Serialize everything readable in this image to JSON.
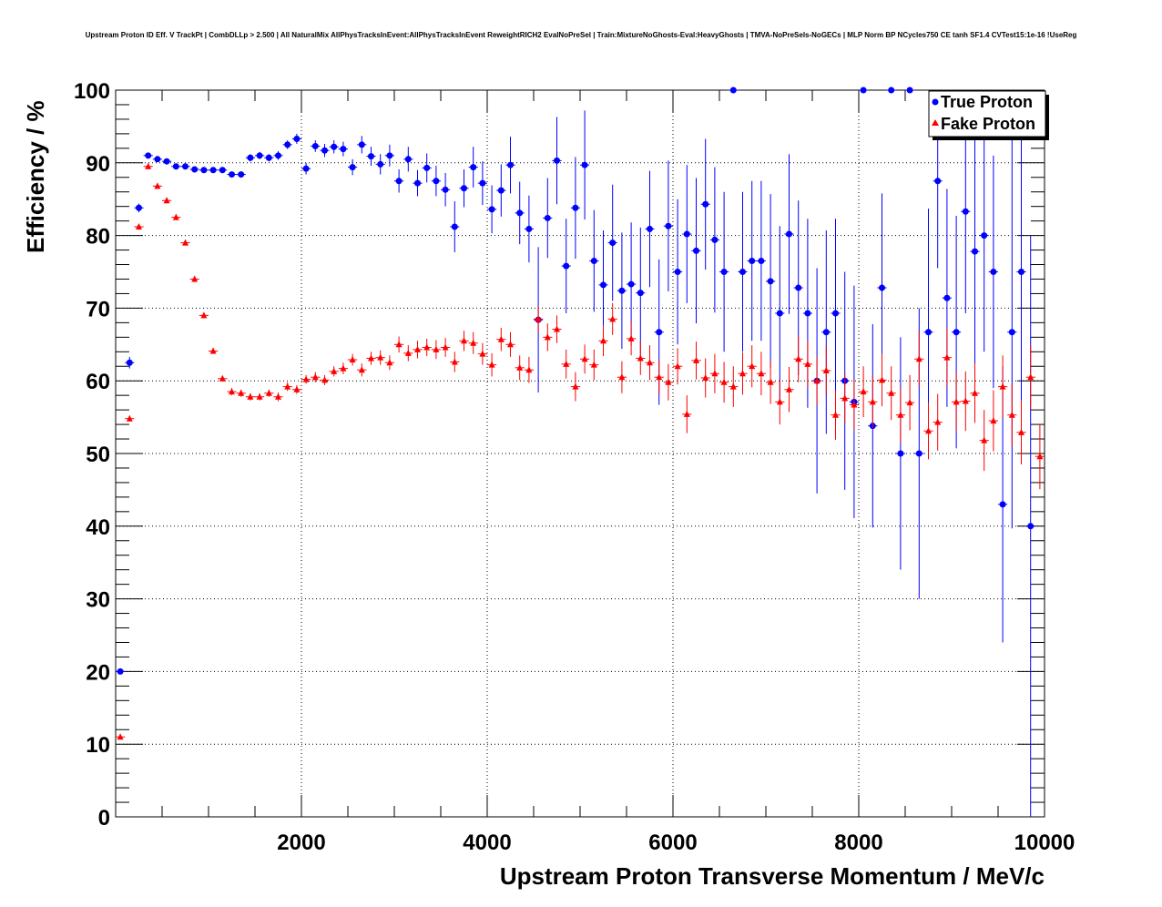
{
  "chart_data": {
    "type": "scatter",
    "title": "Upstream Proton ID Eff. V TrackPt | CombDLLp > 2.500 | All NaturalMix AllPhysTracksInEvent:AllPhysTracksInEvent ReweightRICH2 EvalNoPreSel | Train:MixtureNoGhosts-Eval:HeavyGhosts | TMVA-NoPreSels-NoGECs | MLP Norm BP NCycles750 CE tanh SF1.4 CVTest15:1e-16 !UseReg",
    "xlabel": "Upstream Proton Transverse Momentum / MeV/c",
    "ylabel": "Efficiency / %",
    "xlim": [
      0,
      10000
    ],
    "ylim": [
      0,
      100
    ],
    "xticks": [
      2000,
      4000,
      6000,
      8000,
      10000
    ],
    "yticks": [
      0,
      10,
      20,
      30,
      40,
      50,
      60,
      70,
      80,
      90,
      100
    ],
    "grid": true,
    "legend_position": "top-right",
    "series": [
      {
        "name": "True Proton",
        "color": "#0000ff",
        "marker": "circle",
        "points": [
          [
            50,
            20.0,
            0
          ],
          [
            150,
            62.5,
            0.8
          ],
          [
            250,
            83.8,
            0.6
          ],
          [
            350,
            91.0,
            0.4
          ],
          [
            450,
            90.5,
            0.3
          ],
          [
            550,
            90.2,
            0.3
          ],
          [
            650,
            89.5,
            0.3
          ],
          [
            750,
            89.5,
            0.3
          ],
          [
            850,
            89.1,
            0.3
          ],
          [
            950,
            89.0,
            0.3
          ],
          [
            1050,
            89.0,
            0.3
          ],
          [
            1150,
            89.0,
            0.3
          ],
          [
            1250,
            88.4,
            0.4
          ],
          [
            1350,
            88.4,
            0.4
          ],
          [
            1450,
            90.7,
            0.5
          ],
          [
            1550,
            91.0,
            0.5
          ],
          [
            1650,
            90.7,
            0.5
          ],
          [
            1750,
            91.0,
            0.6
          ],
          [
            1850,
            92.5,
            0.6
          ],
          [
            1950,
            93.3,
            0.7
          ],
          [
            2050,
            89.2,
            0.8
          ],
          [
            2150,
            92.3,
            0.8
          ],
          [
            2250,
            91.7,
            0.9
          ],
          [
            2350,
            92.2,
            0.9
          ],
          [
            2450,
            91.9,
            1.0
          ],
          [
            2550,
            89.4,
            1.1
          ],
          [
            2650,
            92.5,
            1.2
          ],
          [
            2750,
            90.9,
            1.3
          ],
          [
            2850,
            89.8,
            1.4
          ],
          [
            2950,
            91.0,
            1.5
          ],
          [
            3050,
            87.5,
            1.6
          ],
          [
            3150,
            90.5,
            1.7
          ],
          [
            3250,
            87.2,
            1.8
          ],
          [
            3350,
            89.3,
            2.0
          ],
          [
            3450,
            87.5,
            2.1
          ],
          [
            3550,
            86.3,
            2.3
          ],
          [
            3650,
            81.2,
            3.5
          ],
          [
            3750,
            86.5,
            2.6
          ],
          [
            3850,
            89.4,
            2.8
          ],
          [
            3950,
            87.2,
            3.0
          ],
          [
            4050,
            83.6,
            3.3
          ],
          [
            4150,
            86.2,
            3.6
          ],
          [
            4250,
            89.7,
            3.9
          ],
          [
            4350,
            83.1,
            4.3
          ],
          [
            4450,
            80.9,
            4.6
          ],
          [
            4550,
            68.4,
            10.0
          ],
          [
            4650,
            82.4,
            5.5
          ],
          [
            4750,
            90.3,
            6.0
          ],
          [
            4850,
            75.8,
            6.5
          ],
          [
            4950,
            83.8,
            7.0
          ],
          [
            5050,
            89.7,
            7.5
          ],
          [
            5150,
            76.5,
            7.0
          ],
          [
            5250,
            73.2,
            7.5
          ],
          [
            5350,
            79.0,
            8.0
          ],
          [
            5450,
            72.4,
            8.0
          ],
          [
            5550,
            73.3,
            8.5
          ],
          [
            5650,
            72.1,
            9.0
          ],
          [
            5750,
            80.9,
            8.0
          ],
          [
            5850,
            66.7,
            10.0
          ],
          [
            5950,
            81.3,
            9.0
          ],
          [
            6050,
            75.0,
            10.0
          ],
          [
            6150,
            80.2,
            9.5
          ],
          [
            6250,
            77.9,
            10.0
          ],
          [
            6350,
            84.3,
            9.0
          ],
          [
            6450,
            79.4,
            10.0
          ],
          [
            6550,
            75.0,
            11.0
          ],
          [
            6650,
            100.0,
            0
          ],
          [
            6750,
            75.0,
            11.0
          ],
          [
            6850,
            76.5,
            11.0
          ],
          [
            6950,
            76.5,
            11.0
          ],
          [
            7050,
            73.7,
            12.0
          ],
          [
            7150,
            69.3,
            12.0
          ],
          [
            7250,
            80.2,
            11.0
          ],
          [
            7350,
            72.8,
            12.0
          ],
          [
            7450,
            69.3,
            13.0
          ],
          [
            7550,
            60.0,
            15.5
          ],
          [
            7650,
            66.7,
            14.0
          ],
          [
            7750,
            69.3,
            13.0
          ],
          [
            7850,
            60.0,
            15.0
          ],
          [
            7950,
            57.1,
            16.0
          ],
          [
            8050,
            100.0,
            0
          ],
          [
            8150,
            53.8,
            14.0
          ],
          [
            8250,
            72.8,
            13.0
          ],
          [
            8350,
            100.0,
            0
          ],
          [
            8450,
            50.0,
            16.0
          ],
          [
            8550,
            100.0,
            0
          ],
          [
            8650,
            50.0,
            20.0
          ],
          [
            8750,
            66.7,
            17.0
          ],
          [
            8850,
            87.5,
            12.0
          ],
          [
            8950,
            71.4,
            15.0
          ],
          [
            9050,
            66.7,
            16.0
          ],
          [
            9150,
            83.3,
            14.0
          ],
          [
            9250,
            77.8,
            16.0
          ],
          [
            9350,
            80.0,
            16.0
          ],
          [
            9450,
            75.0,
            16.0
          ],
          [
            9550,
            43.0,
            19.0
          ],
          [
            9650,
            66.7,
            27.0
          ],
          [
            9750,
            75.0,
            26.0
          ],
          [
            9850,
            40.0,
            40.0
          ]
        ]
      },
      {
        "name": "Fake Proton",
        "color": "#ff0000",
        "marker": "triangle",
        "points": [
          [
            50,
            11.0,
            0.3
          ],
          [
            150,
            54.8,
            0.4
          ],
          [
            250,
            81.2,
            0.4
          ],
          [
            350,
            89.5,
            0.4
          ],
          [
            450,
            86.8,
            0.4
          ],
          [
            550,
            84.8,
            0.4
          ],
          [
            650,
            82.5,
            0.4
          ],
          [
            750,
            79.0,
            0.4
          ],
          [
            850,
            74.0,
            0.4
          ],
          [
            950,
            69.0,
            0.4
          ],
          [
            1050,
            64.1,
            0.4
          ],
          [
            1150,
            60.3,
            0.4
          ],
          [
            1250,
            58.5,
            0.5
          ],
          [
            1350,
            58.3,
            0.5
          ],
          [
            1450,
            57.8,
            0.5
          ],
          [
            1550,
            57.8,
            0.5
          ],
          [
            1650,
            58.3,
            0.5
          ],
          [
            1750,
            57.8,
            0.6
          ],
          [
            1850,
            59.2,
            0.6
          ],
          [
            1950,
            58.8,
            0.6
          ],
          [
            2050,
            60.2,
            0.6
          ],
          [
            2150,
            60.5,
            0.7
          ],
          [
            2250,
            60.1,
            0.7
          ],
          [
            2350,
            61.3,
            0.7
          ],
          [
            2450,
            61.7,
            0.8
          ],
          [
            2550,
            62.9,
            0.8
          ],
          [
            2650,
            61.5,
            0.9
          ],
          [
            2750,
            63.1,
            0.9
          ],
          [
            2850,
            63.2,
            1.0
          ],
          [
            2950,
            62.5,
            1.0
          ],
          [
            3050,
            65.0,
            1.1
          ],
          [
            3150,
            63.8,
            1.1
          ],
          [
            3250,
            64.3,
            1.2
          ],
          [
            3350,
            64.6,
            1.2
          ],
          [
            3450,
            64.3,
            1.3
          ],
          [
            3550,
            64.6,
            1.3
          ],
          [
            3650,
            62.6,
            1.4
          ],
          [
            3750,
            65.5,
            1.4
          ],
          [
            3850,
            65.2,
            1.5
          ],
          [
            3950,
            63.7,
            1.5
          ],
          [
            4050,
            62.2,
            1.6
          ],
          [
            4150,
            65.7,
            1.6
          ],
          [
            4250,
            65.0,
            1.7
          ],
          [
            4350,
            61.8,
            1.7
          ],
          [
            4450,
            61.5,
            1.8
          ],
          [
            4550,
            68.5,
            1.8
          ],
          [
            4650,
            66.0,
            1.9
          ],
          [
            4750,
            67.1,
            1.9
          ],
          [
            4850,
            62.3,
            2.0
          ],
          [
            4950,
            59.2,
            2.0
          ],
          [
            5050,
            63.0,
            2.0
          ],
          [
            5150,
            62.2,
            2.1
          ],
          [
            5250,
            65.5,
            2.1
          ],
          [
            5350,
            68.5,
            2.2
          ],
          [
            5450,
            60.5,
            2.2
          ],
          [
            5550,
            65.8,
            2.3
          ],
          [
            5650,
            63.1,
            2.3
          ],
          [
            5750,
            62.5,
            2.4
          ],
          [
            5850,
            60.5,
            2.4
          ],
          [
            5950,
            59.8,
            2.5
          ],
          [
            6050,
            62.0,
            2.5
          ],
          [
            6150,
            55.4,
            2.6
          ],
          [
            6250,
            62.8,
            2.6
          ],
          [
            6350,
            60.4,
            2.7
          ],
          [
            6450,
            61.0,
            2.7
          ],
          [
            6550,
            59.8,
            2.8
          ],
          [
            6650,
            59.2,
            2.8
          ],
          [
            6750,
            61.0,
            2.9
          ],
          [
            6850,
            62.0,
            2.9
          ],
          [
            6950,
            61.0,
            3.0
          ],
          [
            7050,
            59.8,
            3.0
          ],
          [
            7150,
            57.1,
            3.1
          ],
          [
            7250,
            58.8,
            3.1
          ],
          [
            7350,
            63.0,
            3.2
          ],
          [
            7450,
            62.3,
            3.2
          ],
          [
            7550,
            60.0,
            3.3
          ],
          [
            7650,
            61.4,
            3.3
          ],
          [
            7750,
            55.3,
            3.4
          ],
          [
            7850,
            57.6,
            3.4
          ],
          [
            7950,
            56.7,
            3.5
          ],
          [
            8050,
            58.5,
            3.5
          ],
          [
            8150,
            57.1,
            3.6
          ],
          [
            8250,
            60.1,
            3.6
          ],
          [
            8350,
            58.3,
            3.7
          ],
          [
            8450,
            55.3,
            3.7
          ],
          [
            8550,
            57.0,
            3.8
          ],
          [
            8650,
            63.0,
            3.8
          ],
          [
            8750,
            53.1,
            3.9
          ],
          [
            8850,
            54.3,
            3.9
          ],
          [
            8950,
            63.2,
            4.0
          ],
          [
            9050,
            57.1,
            4.0
          ],
          [
            9150,
            57.2,
            4.1
          ],
          [
            9250,
            58.3,
            4.1
          ],
          [
            9350,
            51.8,
            4.2
          ],
          [
            9450,
            54.5,
            4.2
          ],
          [
            9550,
            59.2,
            4.3
          ],
          [
            9650,
            55.3,
            4.3
          ],
          [
            9750,
            52.9,
            4.4
          ],
          [
            9850,
            60.5,
            4.4
          ],
          [
            9950,
            49.6,
            4.5
          ]
        ]
      }
    ]
  }
}
